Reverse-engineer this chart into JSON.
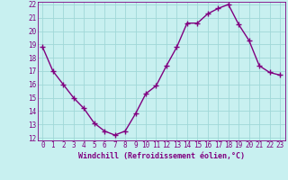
{
  "x": [
    0,
    1,
    2,
    3,
    4,
    5,
    6,
    7,
    8,
    9,
    10,
    11,
    12,
    13,
    14,
    15,
    16,
    17,
    18,
    19,
    20,
    21,
    22,
    23
  ],
  "y": [
    18.8,
    17.0,
    16.0,
    15.0,
    14.2,
    13.1,
    12.5,
    12.2,
    12.5,
    13.8,
    15.3,
    15.9,
    17.4,
    18.8,
    20.6,
    20.6,
    21.3,
    21.7,
    22.0,
    20.5,
    19.3,
    17.4,
    16.9,
    16.7
  ],
  "line_color": "#800080",
  "marker": "+",
  "marker_size": 4,
  "background_color": "#c8f0f0",
  "grid_color": "#a0d8d8",
  "xlabel": "Windchill (Refroidissement éolien,°C)",
  "xlabel_color": "#800080",
  "tick_color": "#800080",
  "ylim": [
    12,
    22
  ],
  "xlim": [
    -0.5,
    23.5
  ],
  "yticks": [
    12,
    13,
    14,
    15,
    16,
    17,
    18,
    19,
    20,
    21,
    22
  ],
  "xticks": [
    0,
    1,
    2,
    3,
    4,
    5,
    6,
    7,
    8,
    9,
    10,
    11,
    12,
    13,
    14,
    15,
    16,
    17,
    18,
    19,
    20,
    21,
    22,
    23
  ],
  "font_family": "monospace",
  "tick_fontsize": 5.5,
  "xlabel_fontsize": 6,
  "linewidth": 1.0
}
